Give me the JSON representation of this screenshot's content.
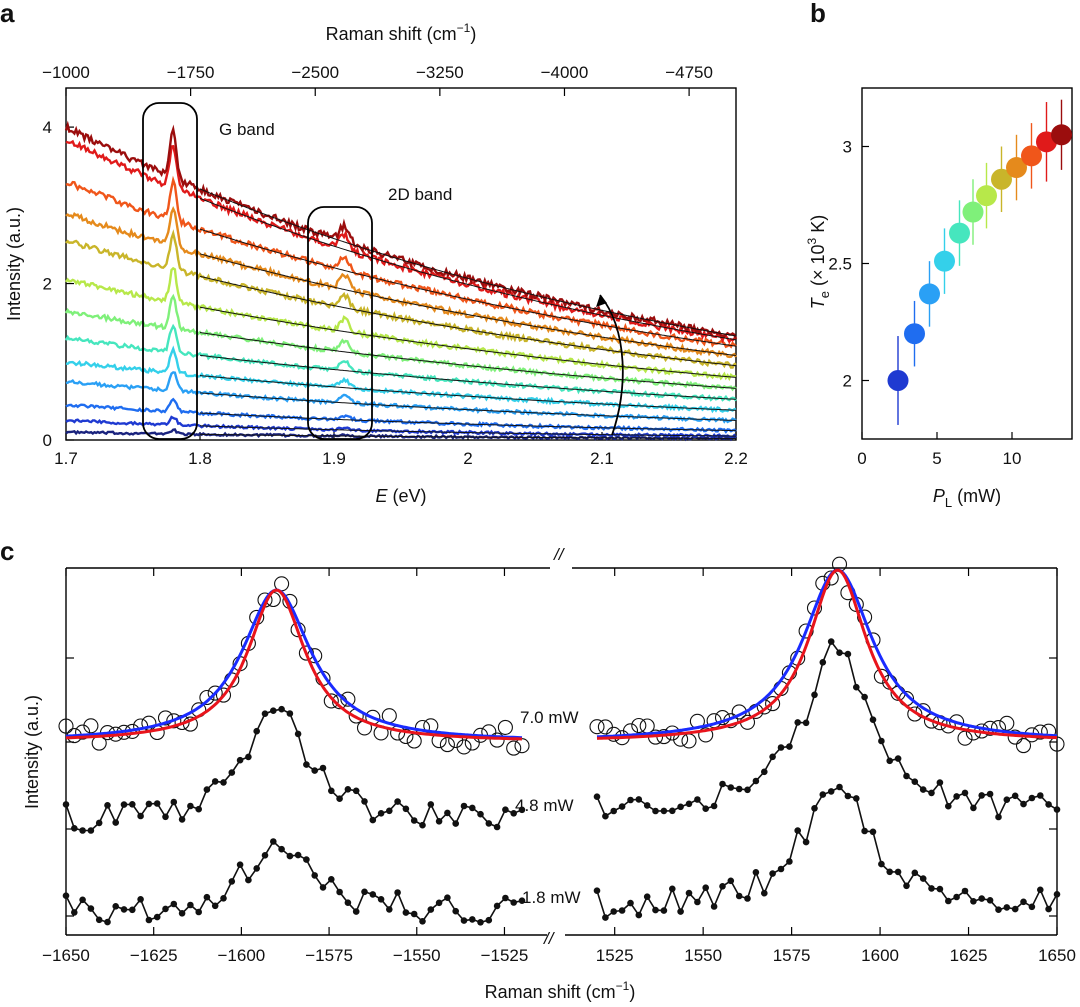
{
  "figure": {
    "panel_labels": [
      "a",
      "b",
      "c"
    ]
  },
  "colors": {
    "fit_blue": "#1a2bff",
    "fit_red": "#e8141c",
    "spectra": [
      "#1a237e",
      "#1f3ad1",
      "#1f6df0",
      "#2aa0f5",
      "#34d0ea",
      "#46e6be",
      "#7ff07a",
      "#b7e84a",
      "#c9b52a",
      "#e58a1c",
      "#f0561a",
      "#e01a1a",
      "#9b0d0d"
    ]
  },
  "chart_data": [
    {
      "id": "a",
      "type": "line",
      "title": "",
      "xlabel": "E (eV)",
      "xlabel_parts": {
        "symbol": "E",
        "unit": "(eV)"
      },
      "ylabel": "Intensity (a.u.)",
      "xlim": [
        1.7,
        2.2
      ],
      "ylim": [
        0,
        4.5
      ],
      "xticks": [
        "1.7",
        "1.8",
        "1.9",
        "2",
        "2.1",
        "2.2"
      ],
      "xtick_values": [
        1.7,
        1.8,
        1.9,
        2.0,
        2.1,
        2.2
      ],
      "yticks": [
        "0",
        "2",
        "4"
      ],
      "ytick_values": [
        0,
        2,
        4
      ],
      "top_axis": {
        "label": "Raman shift (cm",
        "label_sup": "−1",
        "label_end": ")",
        "ticks": [
          "−1000",
          "−1750",
          "−2500",
          "−3250",
          "−4000",
          "−4750"
        ],
        "tick_energies_ev": [
          1.7,
          1.793,
          1.886,
          1.979,
          2.072,
          2.165
        ]
      },
      "annotations": [
        "G band",
        "2D band"
      ],
      "G_band_ev": 1.78,
      "D2_band_ev": 1.908,
      "series_intercepts_at_1_7": [
        0.1,
        0.25,
        0.45,
        0.75,
        1.0,
        1.3,
        1.65,
        2.05,
        2.55,
        2.9,
        3.3,
        3.85,
        4.0
      ],
      "series_end_at_2_2": [
        0.02,
        0.05,
        0.12,
        0.25,
        0.38,
        0.52,
        0.66,
        0.8,
        0.95,
        1.08,
        1.2,
        1.28,
        1.33
      ],
      "G_peak_heights": [
        0.05,
        0.1,
        0.15,
        0.25,
        0.3,
        0.35,
        0.4,
        0.45,
        0.45,
        0.5,
        0.5,
        0.55,
        0.6
      ]
    },
    {
      "id": "b",
      "type": "scatter",
      "xlabel": "P_L (mW)",
      "xlabel_parts": {
        "symbol": "P",
        "sub": "L",
        "unit": "(mW)"
      },
      "ylabel": "T_e (× 10^3 K)",
      "ylabel_parts": {
        "symbol": "T",
        "sub": "e",
        "pre": "(× 10",
        "sup": "3",
        "post": " K)"
      },
      "xlim": [
        0,
        14
      ],
      "ylim": [
        1.75,
        3.25
      ],
      "xticks": [
        "0",
        "5",
        "10"
      ],
      "xtick_values": [
        0,
        5,
        10
      ],
      "yticks": [
        "2",
        "2.5",
        "3"
      ],
      "ytick_values": [
        2,
        2.5,
        3
      ],
      "x": [
        2.4,
        3.5,
        4.5,
        5.5,
        6.5,
        7.4,
        8.3,
        9.3,
        10.3,
        11.3,
        12.3,
        13.3
      ],
      "y": [
        2.0,
        2.2,
        2.37,
        2.51,
        2.63,
        2.72,
        2.79,
        2.86,
        2.91,
        2.96,
        3.02,
        3.05
      ],
      "yerr": [
        0.19,
        0.14,
        0.14,
        0.14,
        0.14,
        0.14,
        0.14,
        0.14,
        0.14,
        0.14,
        0.17,
        0.15
      ]
    },
    {
      "id": "c",
      "type": "line",
      "xlabel": "Raman shift (cm",
      "xlabel_sup": "−1",
      "xlabel_end": ")",
      "ylabel": "Intensity (a.u.)",
      "break_marks": [
        "//",
        "//"
      ],
      "left_xlim": [
        -1650,
        -1520
      ],
      "right_xlim": [
        1520,
        1650
      ],
      "left_xticks": [
        "−1650",
        "−1625",
        "−1600",
        "−1575",
        "−1550",
        "−1525"
      ],
      "left_xtick_values": [
        -1650,
        -1625,
        -1600,
        -1575,
        -1550,
        -1525
      ],
      "right_xticks": [
        "1525",
        "1550",
        "1575",
        "1600",
        "1625",
        "1650"
      ],
      "right_xtick_values": [
        1525,
        1550,
        1575,
        1600,
        1625,
        1650
      ],
      "series_labels": [
        "7.0 mW",
        "4.8 mW",
        "1.8 mW"
      ],
      "left_peak_center": -1590,
      "right_peak_center": 1588,
      "fits": [
        "blue",
        "red"
      ]
    }
  ]
}
